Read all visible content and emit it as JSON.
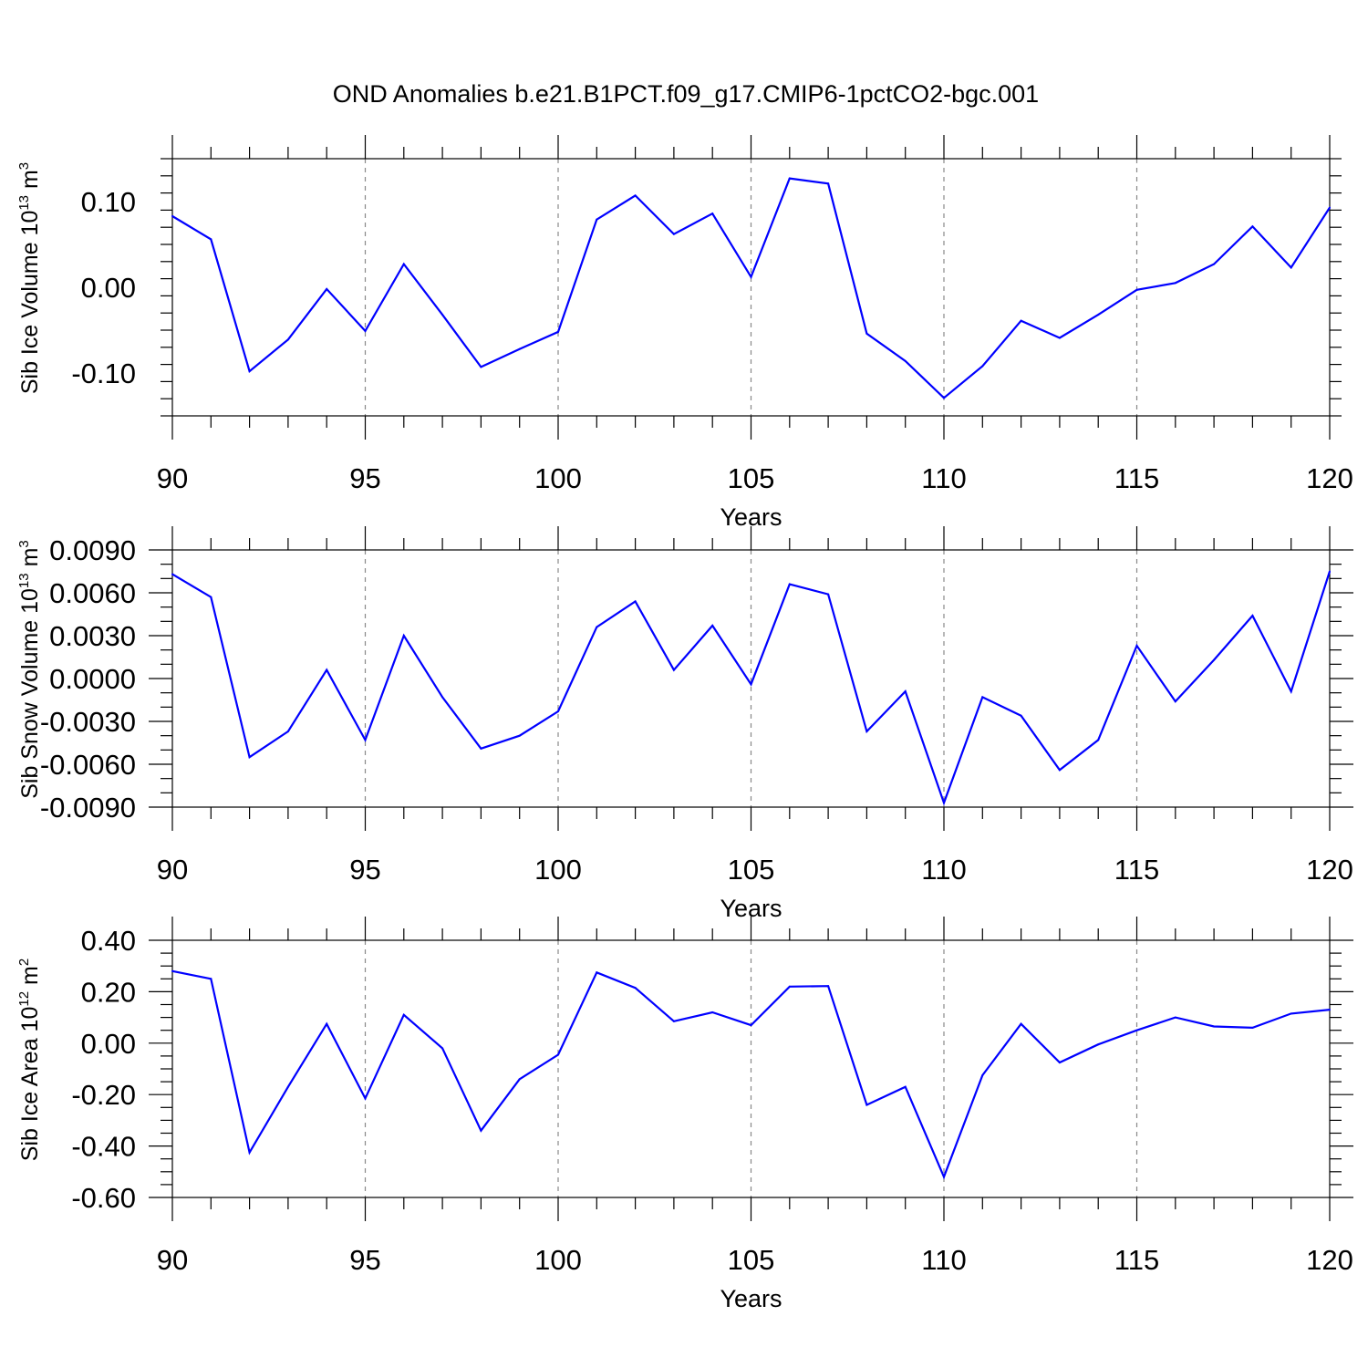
{
  "figure": {
    "title": "OND Anomalies b.e21.B1PCT.f09_g17.CMIP6-1pctCO2-bgc.001",
    "line_color": "#0000ff",
    "grid_color": "#888888",
    "grid_style": "dashed vertical lines at major x ticks"
  },
  "chart_data": [
    {
      "type": "line",
      "title": "",
      "xlabel": "Years",
      "ylabel": "Sib Ice Volume 10",
      "ylabel_exp": "13",
      "ylabel_unit": " m",
      "ylabel_unit_exp": "3",
      "xlim": [
        90,
        120
      ],
      "ylim": [
        -0.15,
        0.15
      ],
      "x_ticks": [
        90,
        95,
        100,
        105,
        110,
        115,
        120
      ],
      "x_tick_labels": [
        "90",
        "95",
        "100",
        "105",
        "110",
        "115",
        "120"
      ],
      "y_ticks": [
        -0.1,
        0.0,
        0.1
      ],
      "y_tick_labels": [
        "-0.10",
        "0.00",
        "0.10"
      ],
      "y_minor_step": 0.02,
      "grid": true,
      "x": [
        90,
        91,
        92,
        93,
        94,
        95,
        96,
        97,
        98,
        99,
        100,
        101,
        102,
        103,
        104,
        105,
        106,
        107,
        108,
        109,
        110,
        111,
        112,
        113,
        114,
        115,
        116,
        117,
        118,
        119,
        120
      ],
      "series": [
        {
          "values": [
            0.083,
            0.056,
            -0.098,
            -0.061,
            -0.002,
            -0.051,
            0.027,
            -0.032,
            -0.093,
            -0.072,
            -0.052,
            0.079,
            0.107,
            0.062,
            0.086,
            0.012,
            0.127,
            0.121,
            -0.054,
            -0.086,
            -0.129,
            -0.092,
            -0.039,
            -0.059,
            -0.032,
            -0.003,
            0.005,
            0.027,
            0.071,
            0.023,
            0.093
          ]
        }
      ]
    },
    {
      "type": "line",
      "title": "",
      "xlabel": "Years",
      "ylabel": "Sib Snow Volume 10",
      "ylabel_exp": "13",
      "ylabel_unit": " m",
      "ylabel_unit_exp": "3",
      "xlim": [
        90,
        120
      ],
      "ylim": [
        -0.009,
        0.009
      ],
      "x_ticks": [
        90,
        95,
        100,
        105,
        110,
        115,
        120
      ],
      "x_tick_labels": [
        "90",
        "95",
        "100",
        "105",
        "110",
        "115",
        "120"
      ],
      "y_ticks": [
        -0.009,
        -0.006,
        -0.003,
        0.0,
        0.003,
        0.006,
        0.009
      ],
      "y_tick_labels": [
        "-0.0090",
        "-0.0060",
        "-0.0030",
        "0.0000",
        "0.0030",
        "0.0060",
        "0.0090"
      ],
      "y_minor_step": 0.001,
      "grid": true,
      "x": [
        90,
        91,
        92,
        93,
        94,
        95,
        96,
        97,
        98,
        99,
        100,
        101,
        102,
        103,
        104,
        105,
        106,
        107,
        108,
        109,
        110,
        111,
        112,
        113,
        114,
        115,
        116,
        117,
        118,
        119,
        120
      ],
      "series": [
        {
          "values": [
            0.0073,
            0.0057,
            -0.0055,
            -0.0037,
            0.0006,
            -0.0043,
            0.003,
            -0.0013,
            -0.0049,
            -0.004,
            -0.0023,
            0.0036,
            0.0054,
            0.0006,
            0.0037,
            -0.0004,
            0.0066,
            0.0059,
            -0.0037,
            -0.0009,
            -0.0087,
            -0.0013,
            -0.0026,
            -0.0064,
            -0.0043,
            0.0023,
            -0.0016,
            0.0013,
            0.0044,
            -0.0009,
            0.0075
          ]
        }
      ]
    },
    {
      "type": "line",
      "title": "",
      "xlabel": "Years",
      "ylabel": "Sib Ice Area 10",
      "ylabel_exp": "12",
      "ylabel_unit": " m",
      "ylabel_unit_exp": "2",
      "xlim": [
        90,
        120
      ],
      "ylim": [
        -0.6,
        0.4
      ],
      "x_ticks": [
        90,
        95,
        100,
        105,
        110,
        115,
        120
      ],
      "x_tick_labels": [
        "90",
        "95",
        "100",
        "105",
        "110",
        "115",
        "120"
      ],
      "y_ticks": [
        -0.6,
        -0.4,
        -0.2,
        0.0,
        0.2,
        0.4
      ],
      "y_tick_labels": [
        "-0.60",
        "-0.40",
        "-0.20",
        "0.00",
        "0.20",
        "0.40"
      ],
      "y_minor_step": 0.05,
      "grid": true,
      "x": [
        90,
        91,
        92,
        93,
        94,
        95,
        96,
        97,
        98,
        99,
        100,
        101,
        102,
        103,
        104,
        105,
        106,
        107,
        108,
        109,
        110,
        111,
        112,
        113,
        114,
        115,
        116,
        117,
        118,
        119,
        120
      ],
      "series": [
        {
          "values": [
            0.28,
            0.25,
            -0.425,
            -0.17,
            0.075,
            -0.215,
            0.11,
            -0.02,
            -0.34,
            -0.14,
            -0.045,
            0.275,
            0.215,
            0.085,
            0.12,
            0.07,
            0.22,
            0.222,
            -0.24,
            -0.17,
            -0.52,
            -0.125,
            0.075,
            -0.075,
            -0.005,
            0.05,
            0.1,
            0.065,
            0.06,
            0.115,
            0.13
          ]
        }
      ]
    }
  ]
}
